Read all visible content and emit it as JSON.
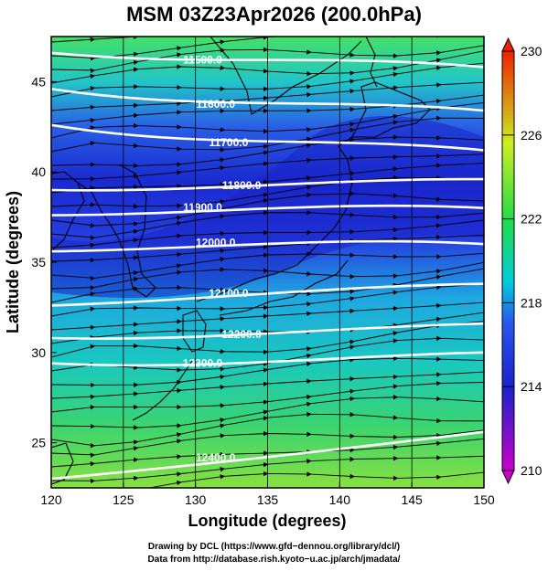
{
  "title": "MSM 03Z23Apr2026 (200.0hPa)",
  "xlabel": "Longitude (degrees)",
  "ylabel": "Latitude  (degrees)",
  "x_ticks": [
    120,
    125,
    130,
    135,
    140,
    145,
    150
  ],
  "y_ticks": [
    25,
    30,
    35,
    40,
    45
  ],
  "x_range": [
    120,
    150
  ],
  "y_range": [
    22.5,
    47.5
  ],
  "colorbar": {
    "ticks": [
      210,
      214,
      218,
      222,
      226,
      230
    ],
    "range": [
      210,
      230
    ],
    "colors": [
      "#cc00cc",
      "#1a22cc",
      "#2233ee",
      "#00ccdd",
      "#22dd44",
      "#ccee22",
      "#ee2200"
    ]
  },
  "contours": [
    {
      "label": "11500.0",
      "lat_west": 46.6,
      "lat_east": 45.8
    },
    {
      "label": "11600.0",
      "lat_west": 44.6,
      "lat_east": 43.4
    },
    {
      "label": "11700.0",
      "lat_west": 42.6,
      "lat_east": 41.2
    },
    {
      "label": "11800.0",
      "lat_west": 39.0,
      "lat_east": 39.6
    },
    {
      "label": "11900.0",
      "lat_west": 37.6,
      "lat_east": 38.0
    },
    {
      "label": "12000.0",
      "lat_west": 35.6,
      "lat_east": 36.0
    },
    {
      "label": "12100.0",
      "lat_west": 32.6,
      "lat_east": 33.8
    },
    {
      "label": "12200.0",
      "lat_west": 30.8,
      "lat_east": 31.6
    },
    {
      "label": "12300.0",
      "lat_west": 29.4,
      "lat_east": 30.0
    },
    {
      "label": "12400.0",
      "lat_west": 23.0,
      "lat_east": 25.6
    }
  ],
  "credit": {
    "line1": "Drawing by DCL (https://www.gfd−dennou.org/library/dcl/)",
    "line2": "Data from http://database.rish.kyoto−u.ac.jp/arch/jmadata/"
  }
}
